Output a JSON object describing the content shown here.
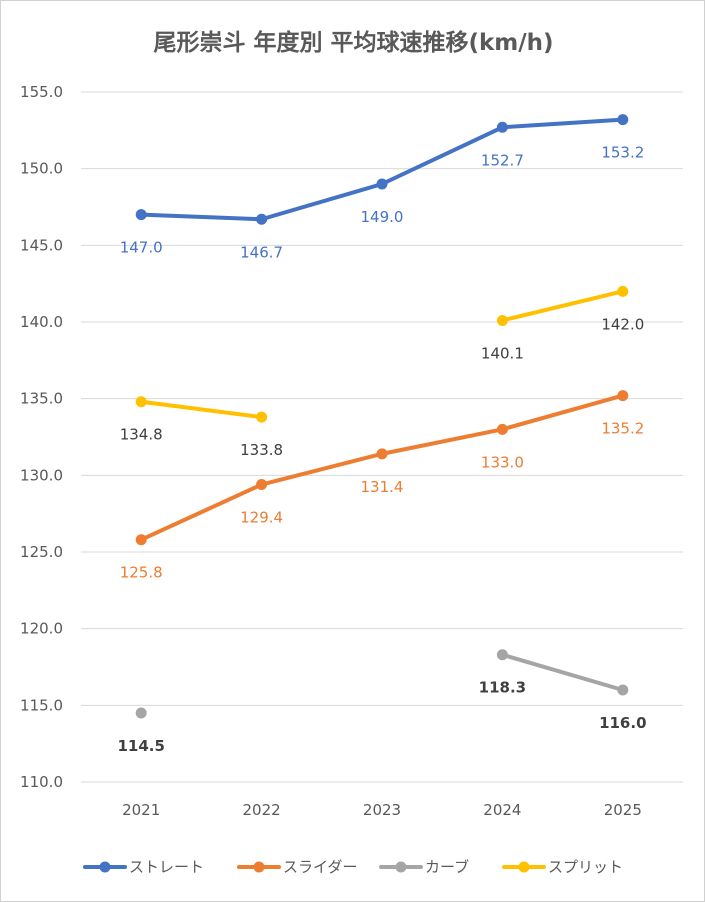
{
  "chart_data": {
    "type": "line",
    "title": "尾形崇斗 年度別 平均球速推移(km/h)",
    "categories": [
      "2021",
      "2022",
      "2023",
      "2024",
      "2025"
    ],
    "ylim": [
      110.0,
      155.0
    ],
    "yticks": [
      "110.0",
      "115.0",
      "120.0",
      "125.0",
      "130.0",
      "135.0",
      "140.0",
      "145.0",
      "150.0",
      "155.0"
    ],
    "grid": true,
    "legend_position": "bottom",
    "series": [
      {
        "name": "ストレート",
        "color": "#4472C4",
        "label_color": "#4472C4",
        "bold_labels": false,
        "values": [
          147.0,
          146.7,
          149.0,
          152.7,
          153.2
        ],
        "labels": [
          "147.0",
          "146.7",
          "149.0",
          "152.7",
          "153.2"
        ]
      },
      {
        "name": "スライダー",
        "color": "#ED7D31",
        "label_color": "#ED7D31",
        "bold_labels": false,
        "values": [
          125.8,
          129.4,
          131.4,
          133.0,
          135.2
        ],
        "labels": [
          "125.8",
          "129.4",
          "131.4",
          "133.0",
          "135.2"
        ]
      },
      {
        "name": "カーブ",
        "color": "#A5A5A5",
        "label_color": "#404040",
        "bold_labels": true,
        "values": [
          114.5,
          null,
          null,
          118.3,
          116.0
        ],
        "labels": [
          "114.5",
          null,
          null,
          "118.3",
          "116.0"
        ]
      },
      {
        "name": "スプリット",
        "color": "#FFC000",
        "label_color": "#404040",
        "bold_labels": false,
        "values": [
          134.8,
          133.8,
          null,
          140.1,
          142.0
        ],
        "labels": [
          "134.8",
          "133.8",
          null,
          "140.1",
          "142.0"
        ]
      }
    ]
  }
}
